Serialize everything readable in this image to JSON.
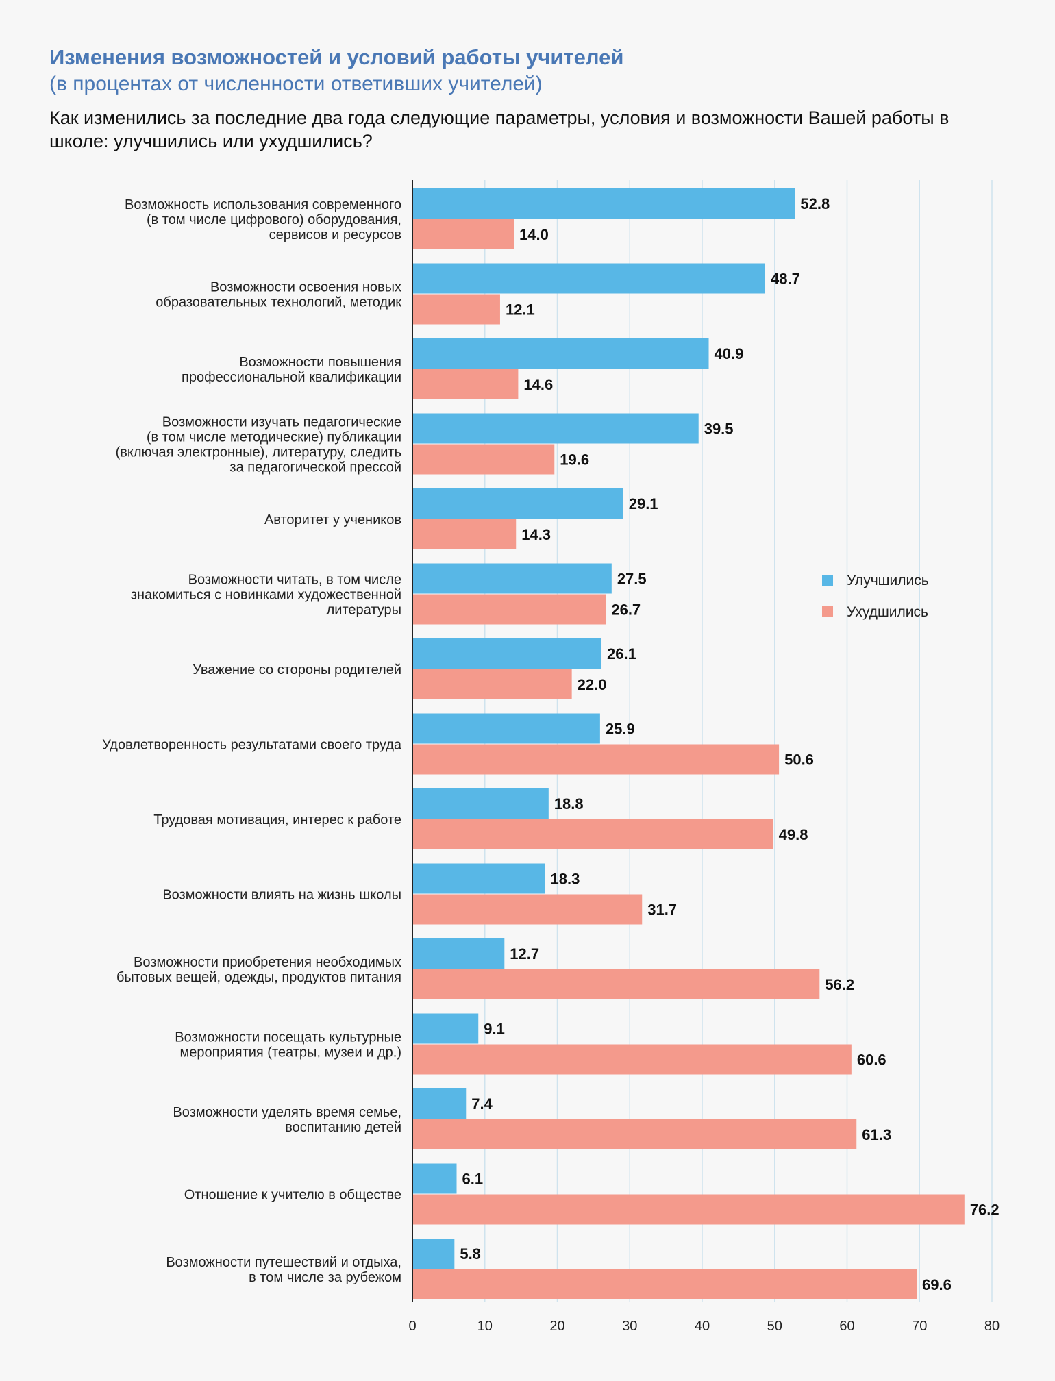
{
  "header": {
    "title": "Изменения возможностей и условий работы учителей",
    "subtitle": "(в процентах от численности ответивших учителей)",
    "question": "Как изменились за последние два года следующие параметры, условия и возможности Вашей работы в школе: улучшились или ухудшились?"
  },
  "colors": {
    "improved": "#58b7e6",
    "worsened": "#f49a8c",
    "grid": "#cfe3ee",
    "axis": "#222222"
  },
  "chart_data": {
    "type": "bar",
    "orientation": "horizontal",
    "categories": [
      [
        "Возможность использования современного",
        "(в том числе цифрового) оборудования,",
        "сервисов и ресурсов"
      ],
      [
        "Возможности освоения новых",
        "образовательных технологий, методик"
      ],
      [
        "Возможности повышения",
        "профессиональной квалификации"
      ],
      [
        "Возможности изучать педагогические",
        "(в том числе методические) публикации",
        "(включая электронные), литературу, следить",
        "за педагогической прессой"
      ],
      [
        "Авторитет у учеников"
      ],
      [
        "Возможности читать, в том числе",
        "знакомиться с новинками художественной",
        "литературы"
      ],
      [
        "Уважение со стороны родителей"
      ],
      [
        "Удовлетворенность результатами своего труда"
      ],
      [
        "Трудовая мотивация, интерес к работе"
      ],
      [
        "Возможности влиять на жизнь школы"
      ],
      [
        "Возможности приобретения необходимых",
        "бытовых вещей, одежды, продуктов питания"
      ],
      [
        "Возможности посещать культурные",
        "мероприятия (театры, музеи и др.)"
      ],
      [
        "Возможности уделять время семье,",
        "воспитанию детей"
      ],
      [
        "Отношение к учителю в обществе"
      ],
      [
        "Возможности путешествий и отдыха,",
        "в том числе за рубежом"
      ]
    ],
    "series": [
      {
        "name": "Улучшились",
        "values": [
          52.8,
          48.7,
          40.9,
          39.5,
          29.1,
          27.5,
          26.1,
          25.9,
          18.8,
          18.3,
          12.7,
          9.1,
          7.4,
          6.1,
          5.8
        ]
      },
      {
        "name": "Ухудшились",
        "values": [
          14.0,
          12.1,
          14.6,
          19.6,
          14.3,
          26.7,
          22.0,
          50.6,
          49.8,
          31.7,
          56.2,
          60.6,
          61.3,
          76.2,
          69.6
        ]
      }
    ],
    "xlim": [
      0,
      80
    ],
    "xticks": [
      0,
      10,
      20,
      30,
      40,
      50,
      60,
      70,
      80
    ],
    "grid": true,
    "legend_position": "right"
  }
}
